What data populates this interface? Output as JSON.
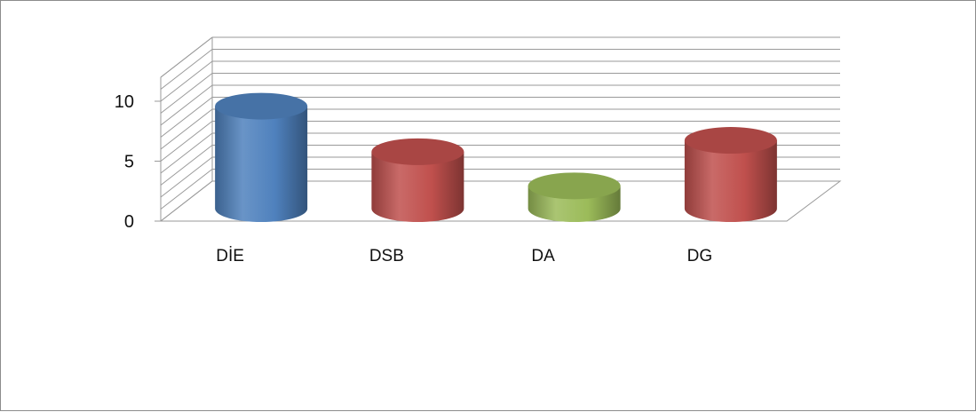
{
  "chart_data": {
    "type": "bar",
    "style": "3d-cylinder",
    "categories": [
      "DİE",
      "DSB",
      "DA",
      "DG"
    ],
    "values": [
      9,
      5,
      2,
      6
    ],
    "colors": [
      "#4f81bd",
      "#c0504d",
      "#9bbb59",
      "#c0504d"
    ],
    "ylim": [
      0,
      10
    ],
    "yticks": [
      0,
      5,
      10
    ],
    "title": "",
    "xlabel": "",
    "ylabel": "",
    "grid": true,
    "legend": "none"
  }
}
